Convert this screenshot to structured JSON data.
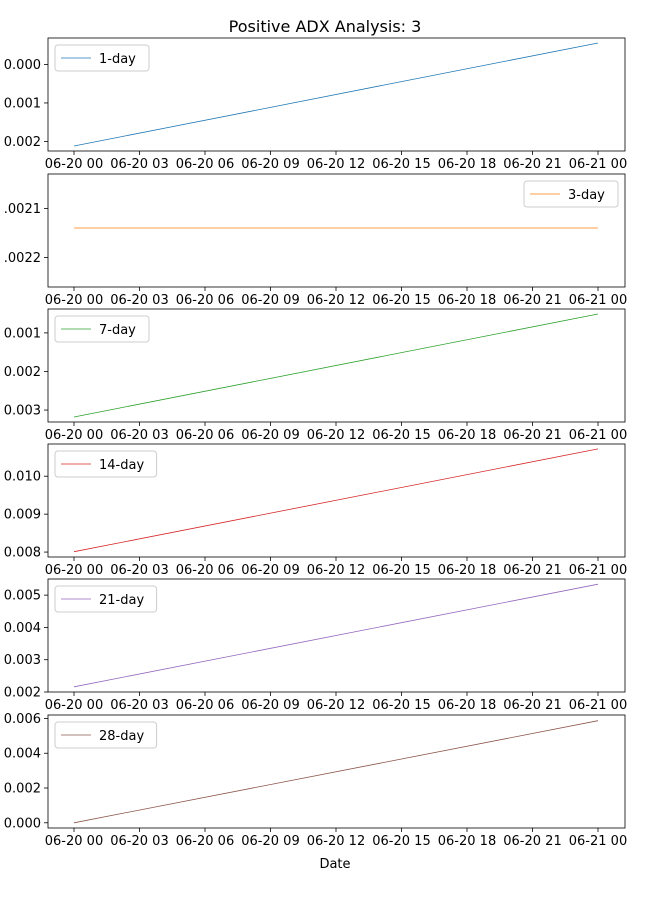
{
  "figure": {
    "title": "Positive ADX Analysis: 3",
    "xlabel": "Date"
  },
  "chart_data": [
    {
      "type": "line",
      "series": [
        {
          "name": "1-day",
          "color": "#1f77b4",
          "x": [
            "06-20 00",
            "06-21 00"
          ],
          "values": [
            -0.00212,
            0.00056
          ]
        }
      ],
      "x_ticks": [
        "06-20 00",
        "06-20 03",
        "06-20 06",
        "06-20 09",
        "06-20 12",
        "06-20 15",
        "06-20 18",
        "06-20 21",
        "06-21 00"
      ],
      "y_ticks": [
        {
          "value": 0.0,
          "label": "0.000"
        },
        {
          "value": -0.001,
          "label": "0.001"
        },
        {
          "value": -0.002,
          "label": "0.002"
        }
      ],
      "ylim": [
        -0.00225,
        0.00069
      ],
      "legend": "upper left",
      "grid": false
    },
    {
      "type": "line",
      "series": [
        {
          "name": "3-day",
          "color": "#ff7f0e",
          "x": [
            "06-20 00",
            "06-21 00"
          ],
          "values": [
            -0.00214,
            -0.00214
          ]
        }
      ],
      "x_ticks": [
        "06-20 00",
        "06-20 03",
        "06-20 06",
        "06-20 09",
        "06-20 12",
        "06-20 15",
        "06-20 18",
        "06-20 21",
        "06-21 00"
      ],
      "y_ticks": [
        {
          "value": -0.0021,
          "label": ".0021"
        },
        {
          "value": -0.0022,
          "label": ".0022"
        }
      ],
      "ylim": [
        -0.00226,
        -0.00203
      ],
      "legend": "upper right",
      "grid": false
    },
    {
      "type": "line",
      "series": [
        {
          "name": "7-day",
          "color": "#2ca02c",
          "x": [
            "06-20 00",
            "06-21 00"
          ],
          "values": [
            -0.00318,
            -0.00051
          ]
        }
      ],
      "x_ticks": [
        "06-20 00",
        "06-20 03",
        "06-20 06",
        "06-20 09",
        "06-20 12",
        "06-20 15",
        "06-20 18",
        "06-20 21",
        "06-21 00"
      ],
      "y_ticks": [
        {
          "value": -0.001,
          "label": "0.001"
        },
        {
          "value": -0.002,
          "label": "0.002"
        },
        {
          "value": -0.003,
          "label": "0.003"
        }
      ],
      "ylim": [
        -0.00331,
        -0.00038
      ],
      "legend": "upper left",
      "grid": false
    },
    {
      "type": "line",
      "series": [
        {
          "name": "14-day",
          "color": "#d62728",
          "x": [
            "06-20 00",
            "06-21 00"
          ],
          "values": [
            0.00801,
            0.01072
          ]
        }
      ],
      "x_ticks": [
        "06-20 00",
        "06-20 03",
        "06-20 06",
        "06-20 09",
        "06-20 12",
        "06-20 15",
        "06-20 18",
        "06-20 21",
        "06-21 00"
      ],
      "y_ticks": [
        {
          "value": 0.01,
          "label": "0.010"
        },
        {
          "value": 0.009,
          "label": "0.009"
        },
        {
          "value": 0.008,
          "label": "0.008"
        }
      ],
      "ylim": [
        0.00787,
        0.01085
      ],
      "legend": "upper left",
      "grid": false
    },
    {
      "type": "line",
      "series": [
        {
          "name": "21-day",
          "color": "#9467bd",
          "x": [
            "06-20 00",
            "06-21 00"
          ],
          "values": [
            0.00216,
            0.00534
          ]
        }
      ],
      "x_ticks": [
        "06-20 00",
        "06-20 03",
        "06-20 06",
        "06-20 09",
        "06-20 12",
        "06-20 15",
        "06-20 18",
        "06-20 21",
        "06-21 00"
      ],
      "y_ticks": [
        {
          "value": 0.005,
          "label": "0.005"
        },
        {
          "value": 0.004,
          "label": "0.004"
        },
        {
          "value": 0.003,
          "label": "0.003"
        },
        {
          "value": 0.002,
          "label": "0.002"
        }
      ],
      "ylim": [
        0.002,
        0.0055
      ],
      "legend": "upper left",
      "grid": false
    },
    {
      "type": "line",
      "series": [
        {
          "name": "28-day",
          "color": "#8c564b",
          "x": [
            "06-20 00",
            "06-21 00"
          ],
          "values": [
            0.0,
            0.00587
          ]
        }
      ],
      "x_ticks": [
        "06-20 00",
        "06-20 03",
        "06-20 06",
        "06-20 09",
        "06-20 12",
        "06-20 15",
        "06-20 18",
        "06-20 21",
        "06-21 00"
      ],
      "y_ticks": [
        {
          "value": 0.006,
          "label": "0.006"
        },
        {
          "value": 0.004,
          "label": "0.004"
        },
        {
          "value": 0.002,
          "label": "0.002"
        },
        {
          "value": 0.0,
          "label": "0.000"
        }
      ],
      "ylim": [
        -0.0003,
        0.0062
      ],
      "legend": "upper left",
      "grid": false
    }
  ]
}
